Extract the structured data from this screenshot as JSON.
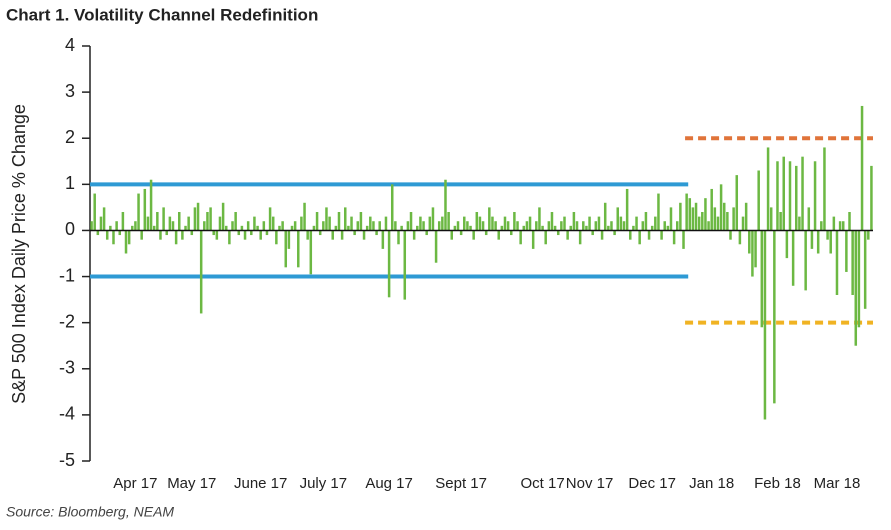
{
  "chart_data": {
    "type": "bar",
    "title": "Chart 1. Volatility Channel Redefinition",
    "y_label": "S&P 500 Index Daily Price % Change",
    "source": "Source: Bloomberg, NEAM",
    "color": "#6cb843",
    "ylim": [
      -5,
      4
    ],
    "yticks": [
      -5,
      -4,
      -3,
      -2,
      -1,
      0,
      1,
      2,
      3,
      4
    ],
    "categories": [
      null,
      null,
      null,
      null,
      null,
      null,
      null,
      null,
      null,
      null,
      null,
      null,
      null,
      null,
      "Apr 17",
      null,
      null,
      null,
      null,
      null,
      null,
      null,
      null,
      null,
      null,
      null,
      null,
      null,
      null,
      null,
      null,
      null,
      "May 17",
      null,
      null,
      null,
      null,
      null,
      null,
      null,
      null,
      null,
      null,
      null,
      null,
      null,
      null,
      null,
      null,
      null,
      null,
      null,
      null,
      null,
      "June 17",
      null,
      null,
      null,
      null,
      null,
      null,
      null,
      null,
      null,
      null,
      null,
      null,
      null,
      null,
      null,
      null,
      null,
      null,
      null,
      "July 17",
      null,
      null,
      null,
      null,
      null,
      null,
      null,
      null,
      null,
      null,
      null,
      null,
      null,
      null,
      null,
      null,
      null,
      null,
      null,
      null,
      "Aug 17",
      null,
      null,
      null,
      null,
      null,
      null,
      null,
      null,
      null,
      null,
      null,
      null,
      null,
      null,
      null,
      null,
      null,
      null,
      null,
      null,
      null,
      null,
      "Sept 17",
      null,
      null,
      null,
      null,
      null,
      null,
      null,
      null,
      null,
      null,
      null,
      null,
      null,
      null,
      null,
      null,
      null,
      null,
      null,
      null,
      null,
      null,
      null,
      null,
      null,
      "Oct 17",
      null,
      null,
      null,
      null,
      null,
      null,
      null,
      null,
      null,
      null,
      null,
      null,
      null,
      null,
      "Nov 17",
      null,
      null,
      null,
      null,
      null,
      null,
      null,
      null,
      null,
      null,
      null,
      null,
      null,
      null,
      null,
      null,
      null,
      null,
      null,
      "Dec 17",
      null,
      null,
      null,
      null,
      null,
      null,
      null,
      null,
      null,
      null,
      null,
      null,
      null,
      null,
      null,
      null,
      null,
      null,
      "Jan 18",
      null,
      null,
      null,
      null,
      null,
      null,
      null,
      null,
      null,
      null,
      null,
      null,
      null,
      null,
      null,
      null,
      null,
      null,
      null,
      null,
      "Feb 18",
      null,
      null,
      null,
      null,
      null,
      null,
      null,
      null,
      null,
      null,
      null,
      null,
      null,
      null,
      null,
      null,
      null,
      null,
      "Mar 18",
      null,
      null,
      null,
      null,
      null,
      null,
      null,
      null,
      null,
      null,
      null
    ],
    "values": [
      0.2,
      0.8,
      -0.1,
      0.3,
      0.5,
      -0.2,
      0.1,
      -0.3,
      0.2,
      -0.1,
      0.4,
      -0.5,
      -0.3,
      0.1,
      0.2,
      0.8,
      -0.2,
      0.9,
      0.3,
      1.1,
      0.1,
      0.4,
      -0.2,
      0.5,
      -0.1,
      0.3,
      0.2,
      -0.3,
      0.4,
      -0.2,
      0.1,
      0.3,
      -0.1,
      0.5,
      0.6,
      -1.8,
      0.2,
      0.4,
      0.5,
      -0.1,
      -0.2,
      0.3,
      0.6,
      0.1,
      -0.3,
      0.2,
      0.4,
      -0.1,
      0.1,
      -0.2,
      0.2,
      -0.1,
      0.3,
      0.1,
      -0.2,
      0.2,
      -0.1,
      0.5,
      0.3,
      -0.3,
      0.1,
      0.2,
      -0.8,
      -0.4,
      0.1,
      0.2,
      -0.8,
      0.3,
      0.6,
      -0.2,
      -0.95,
      0.1,
      0.4,
      -0.1,
      0.2,
      0.5,
      0.3,
      -0.2,
      0.1,
      0.4,
      -0.2,
      0.5,
      0.1,
      0.3,
      -0.1,
      0.2,
      0.4,
      -0.2,
      0.1,
      0.3,
      0.2,
      -0.1,
      0.2,
      -0.4,
      0.3,
      -1.45,
      1.0,
      0.2,
      -0.3,
      0.1,
      -1.5,
      0.2,
      0.4,
      -0.2,
      0.1,
      0.3,
      0.2,
      -0.1,
      0.3,
      0.5,
      -0.7,
      0.2,
      0.3,
      1.1,
      0.4,
      -0.2,
      0.1,
      0.2,
      -0.1,
      0.3,
      0.2,
      0.1,
      -0.2,
      0.4,
      0.3,
      0.2,
      -0.1,
      0.5,
      0.3,
      0.2,
      -0.2,
      0.1,
      0.3,
      0.2,
      -0.1,
      0.4,
      0.2,
      -0.3,
      0.1,
      0.2,
      0.3,
      -0.4,
      0.2,
      0.5,
      0.1,
      -0.3,
      0.2,
      0.4,
      0.1,
      -0.1,
      0.2,
      0.3,
      -0.2,
      0.1,
      0.4,
      0.2,
      -0.3,
      0.2,
      0.1,
      0.3,
      -0.1,
      0.2,
      0.3,
      -0.2,
      0.6,
      0.1,
      0.2,
      -0.1,
      0.5,
      0.3,
      0.2,
      0.9,
      -0.2,
      0.1,
      0.3,
      -0.3,
      0.2,
      0.4,
      -0.2,
      0.1,
      0.3,
      0.8,
      -0.2,
      0.2,
      0.1,
      0.5,
      -0.3,
      0.2,
      0.6,
      -0.4,
      0.8,
      0.7,
      0.5,
      0.6,
      0.3,
      0.4,
      0.7,
      0.2,
      0.9,
      0.5,
      0.3,
      1.0,
      0.6,
      0.4,
      -0.2,
      0.5,
      1.2,
      -0.3,
      0.3,
      0.6,
      -0.5,
      -1.0,
      -0.8,
      1.3,
      -2.1,
      -4.1,
      1.8,
      0.5,
      -3.75,
      1.5,
      0.4,
      1.6,
      -0.6,
      1.5,
      -1.2,
      1.4,
      0.3,
      1.6,
      -1.3,
      0.5,
      -0.4,
      1.5,
      -0.5,
      0.2,
      1.8,
      -0.2,
      -0.5,
      0.3,
      -1.4,
      0.2,
      0.2,
      -0.9,
      0.4,
      -1.4,
      -2.5,
      -2.1,
      2.7,
      -1.7,
      -0.2,
      1.4
    ],
    "reference_lines": [
      {
        "value": 1,
        "color": "#2e9ad4",
        "style": "solid",
        "start_index": 0,
        "end_index": 190
      },
      {
        "value": -1,
        "color": "#2e9ad4",
        "style": "solid",
        "start_index": 0,
        "end_index": 190
      },
      {
        "value": 2,
        "color": "#e0743a",
        "style": "dashed",
        "start_index": 190,
        "end_index": 249
      },
      {
        "value": -2,
        "color": "#f0b323",
        "style": "dashed",
        "start_index": 190,
        "end_index": 249
      }
    ]
  }
}
